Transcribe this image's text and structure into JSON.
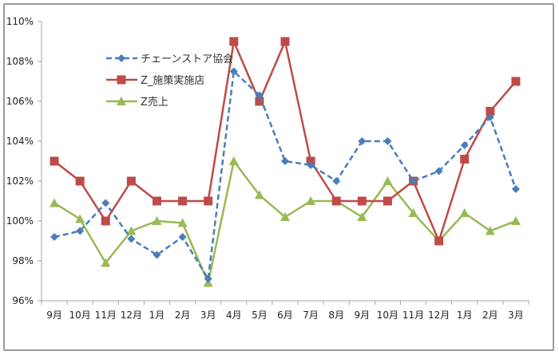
{
  "chart_data": {
    "type": "line",
    "title": "",
    "xlabel": "",
    "ylabel": "",
    "ylim": [
      96,
      110
    ],
    "yticks": [
      "96%",
      "98%",
      "100%",
      "102%",
      "104%",
      "106%",
      "108%",
      "110%"
    ],
    "grid": false,
    "legend_position": "upper-left-inside",
    "categories": [
      "9月",
      "10月",
      "11月",
      "12月",
      "1月",
      "2月",
      "3月",
      "4月",
      "5月",
      "6月",
      "7月",
      "8月",
      "9月",
      "10月",
      "11月",
      "12月",
      "1月",
      "2月",
      "3月"
    ],
    "series": [
      {
        "name": "チェーンストア協会",
        "color": "#4a7ebb",
        "line_style": "dashed",
        "marker": "diamond",
        "values": [
          99.2,
          99.5,
          100.9,
          99.1,
          98.3,
          99.2,
          97.1,
          107.5,
          106.3,
          103.0,
          102.8,
          102.0,
          104.0,
          104.0,
          102.0,
          102.5,
          103.8,
          105.2,
          101.6
        ]
      },
      {
        "name": "Z_施策実施店",
        "color": "#be4b48",
        "line_style": "solid",
        "marker": "square",
        "values": [
          103.0,
          102.0,
          100.0,
          102.0,
          101.0,
          101.0,
          101.0,
          109.0,
          106.0,
          109.0,
          103.0,
          101.0,
          101.0,
          101.0,
          102.0,
          99.0,
          103.1,
          105.5,
          107.0
        ]
      },
      {
        "name": "Z売上",
        "color": "#98b954",
        "line_style": "solid",
        "marker": "triangle",
        "values": [
          100.9,
          100.1,
          97.9,
          99.5,
          100.0,
          99.9,
          96.9,
          103.0,
          101.3,
          100.2,
          101.0,
          101.0,
          100.2,
          102.0,
          100.4,
          99.0,
          100.4,
          99.5,
          100.0
        ]
      }
    ]
  }
}
